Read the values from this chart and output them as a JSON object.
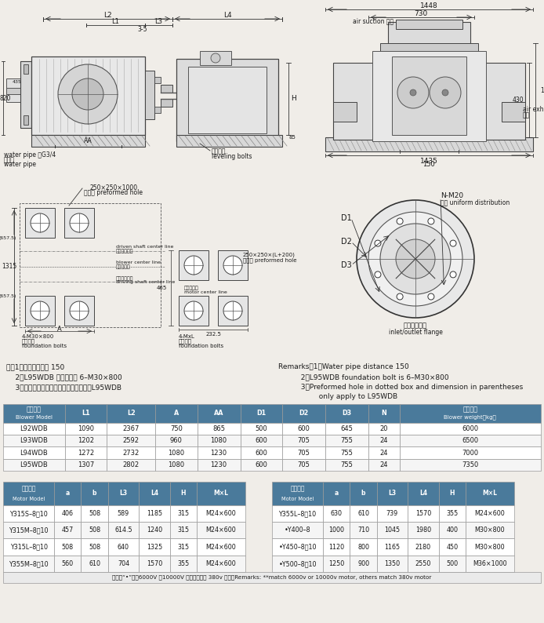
{
  "bg_color": "#f0ede8",
  "table_header_color": "#4a7a9b",
  "table_header_text": "#ffffff",
  "table_row_color": "#ffffff",
  "table_border_color": "#999999",
  "notes_cn": [
    "注：1、输水管间距为 150",
    "    2、L95WDB 地脚螺栓为 6–M30×800",
    "    3、虚线框内预留孔及括号内尺寸仅用于L95WDB"
  ],
  "notes_en": [
    "Remarks：1、Water pipe distance 150",
    "          2、L95WDB foundation bolt is 6–M30×800",
    "          3、Preformed hole in dotted box and dimension in parentheses",
    "                  only apply to L95WDB"
  ],
  "blower_headers": [
    "风机型号\nBlower Model",
    "L1",
    "L2",
    "A",
    "AA",
    "D1",
    "D2",
    "D3",
    "N",
    "主机重量\nBlower weight（kg）"
  ],
  "blower_rows": [
    [
      "L92WDB",
      "1090",
      "2367",
      "750",
      "865",
      "500",
      "600",
      "645",
      "20",
      "6000"
    ],
    [
      "L93WDB",
      "1202",
      "2592",
      "960",
      "1080",
      "600",
      "705",
      "755",
      "24",
      "6500"
    ],
    [
      "L94WDB",
      "1272",
      "2732",
      "1080",
      "1230",
      "600",
      "705",
      "755",
      "24",
      "7000"
    ],
    [
      "L95WDB",
      "1307",
      "2802",
      "1080",
      "1230",
      "600",
      "705",
      "755",
      "24",
      "7350"
    ]
  ],
  "motor_headers_left": [
    "电机型号\nMotor Model",
    "a",
    "b",
    "L3",
    "L4",
    "H",
    "M×L"
  ],
  "motor_headers_right": [
    "电机型号\nMotor Model",
    "a",
    "b",
    "L3",
    "L4",
    "H",
    "M×L"
  ],
  "motor_rows_left": [
    [
      "Y315S–8，10",
      "406",
      "508",
      "589",
      "1185",
      "315",
      "M24×600"
    ],
    [
      "Y315M–8，10",
      "457",
      "508",
      "614.5",
      "1240",
      "315",
      "M24×600"
    ],
    [
      "Y315L–8，10",
      "508",
      "508",
      "640",
      "1325",
      "315",
      "M24×600"
    ],
    [
      "Y355M–8，10",
      "560",
      "610",
      "704",
      "1570",
      "355",
      "M24×600"
    ]
  ],
  "motor_rows_right": [
    [
      "Y355L–8，10",
      "630",
      "610",
      "739",
      "1570",
      "355",
      "M24×600"
    ],
    [
      "•Y400–8",
      "1000",
      "710",
      "1045",
      "1980",
      "400",
      "M30×800"
    ],
    [
      "•Y450–8，10",
      "1120",
      "800",
      "1165",
      "2180",
      "450",
      "M30×800"
    ],
    [
      "•Y500–8，10",
      "1250",
      "900",
      "1350",
      "2550",
      "500",
      "M36×1000"
    ]
  ],
  "motor_footer": "注：带“•”选用6000V 或10000V 电机，其余为 380v 电机。Remarks: **match 6000v or 10000v motor, others match 380v motor"
}
